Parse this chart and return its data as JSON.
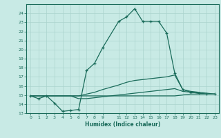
{
  "xlabel": "Humidex (Indice chaleur)",
  "background_color": "#c8eae5",
  "grid_color": "#aad4ce",
  "line_color": "#1a6b5a",
  "xlim": [
    -0.5,
    23.5
  ],
  "ylim": [
    13,
    25
  ],
  "xtick_vals": [
    0,
    1,
    2,
    3,
    4,
    5,
    6,
    7,
    8,
    9,
    11,
    12,
    13,
    14,
    15,
    16,
    17,
    18,
    19,
    20,
    21,
    22,
    23
  ],
  "xtick_labels": [
    "0",
    "1",
    "2",
    "3",
    "4",
    "5",
    "6",
    "7",
    "8",
    "9",
    "11",
    "12",
    "13",
    "14",
    "15",
    "16",
    "17",
    "18",
    "19",
    "20",
    "21",
    "22",
    "23"
  ],
  "ytick_vals": [
    13,
    14,
    15,
    16,
    17,
    18,
    19,
    20,
    21,
    22,
    23,
    24
  ],
  "ytick_labels": [
    "13",
    "14",
    "15",
    "16",
    "17",
    "18",
    "19",
    "20",
    "21",
    "22",
    "23",
    "24"
  ],
  "series_main": {
    "x": [
      0,
      1,
      2,
      3,
      4,
      5,
      6,
      7,
      8,
      9,
      11,
      12,
      13,
      14,
      15,
      16,
      17,
      18,
      19,
      20,
      21,
      22,
      23
    ],
    "y": [
      14.9,
      14.6,
      14.9,
      14.1,
      13.2,
      13.3,
      13.4,
      17.7,
      18.5,
      20.2,
      23.1,
      23.6,
      24.5,
      23.1,
      23.1,
      23.1,
      21.8,
      17.4,
      15.6,
      15.3,
      15.2,
      15.1,
      15.1
    ]
  },
  "series_upper": {
    "x": [
      0,
      1,
      2,
      3,
      4,
      5,
      6,
      7,
      8,
      9,
      11,
      12,
      13,
      14,
      15,
      16,
      17,
      18,
      19,
      20,
      21,
      22,
      23
    ],
    "y": [
      14.9,
      14.9,
      14.9,
      14.9,
      14.9,
      14.9,
      14.9,
      15.1,
      15.3,
      15.6,
      16.1,
      16.4,
      16.6,
      16.7,
      16.8,
      16.9,
      17.0,
      17.2,
      15.6,
      15.4,
      15.3,
      15.2,
      15.1
    ]
  },
  "series_mid": {
    "x": [
      0,
      1,
      2,
      3,
      4,
      5,
      6,
      7,
      8,
      9,
      11,
      12,
      13,
      14,
      15,
      16,
      17,
      18,
      19,
      20,
      21,
      22,
      23
    ],
    "y": [
      14.9,
      14.9,
      14.9,
      14.9,
      14.9,
      14.9,
      14.6,
      14.6,
      14.7,
      14.8,
      15.0,
      15.1,
      15.2,
      15.3,
      15.4,
      15.5,
      15.6,
      15.7,
      15.4,
      15.3,
      15.2,
      15.1,
      15.1
    ]
  },
  "series_lower": {
    "x": [
      0,
      1,
      2,
      3,
      4,
      5,
      6,
      7,
      8,
      9,
      11,
      12,
      13,
      14,
      15,
      16,
      17,
      18,
      19,
      20,
      21,
      22,
      23
    ],
    "y": [
      14.9,
      14.9,
      14.9,
      14.9,
      14.9,
      14.9,
      14.9,
      14.9,
      14.9,
      14.9,
      14.9,
      14.9,
      14.9,
      14.9,
      14.9,
      14.9,
      14.9,
      14.9,
      15.0,
      15.1,
      15.1,
      15.1,
      15.1
    ]
  }
}
